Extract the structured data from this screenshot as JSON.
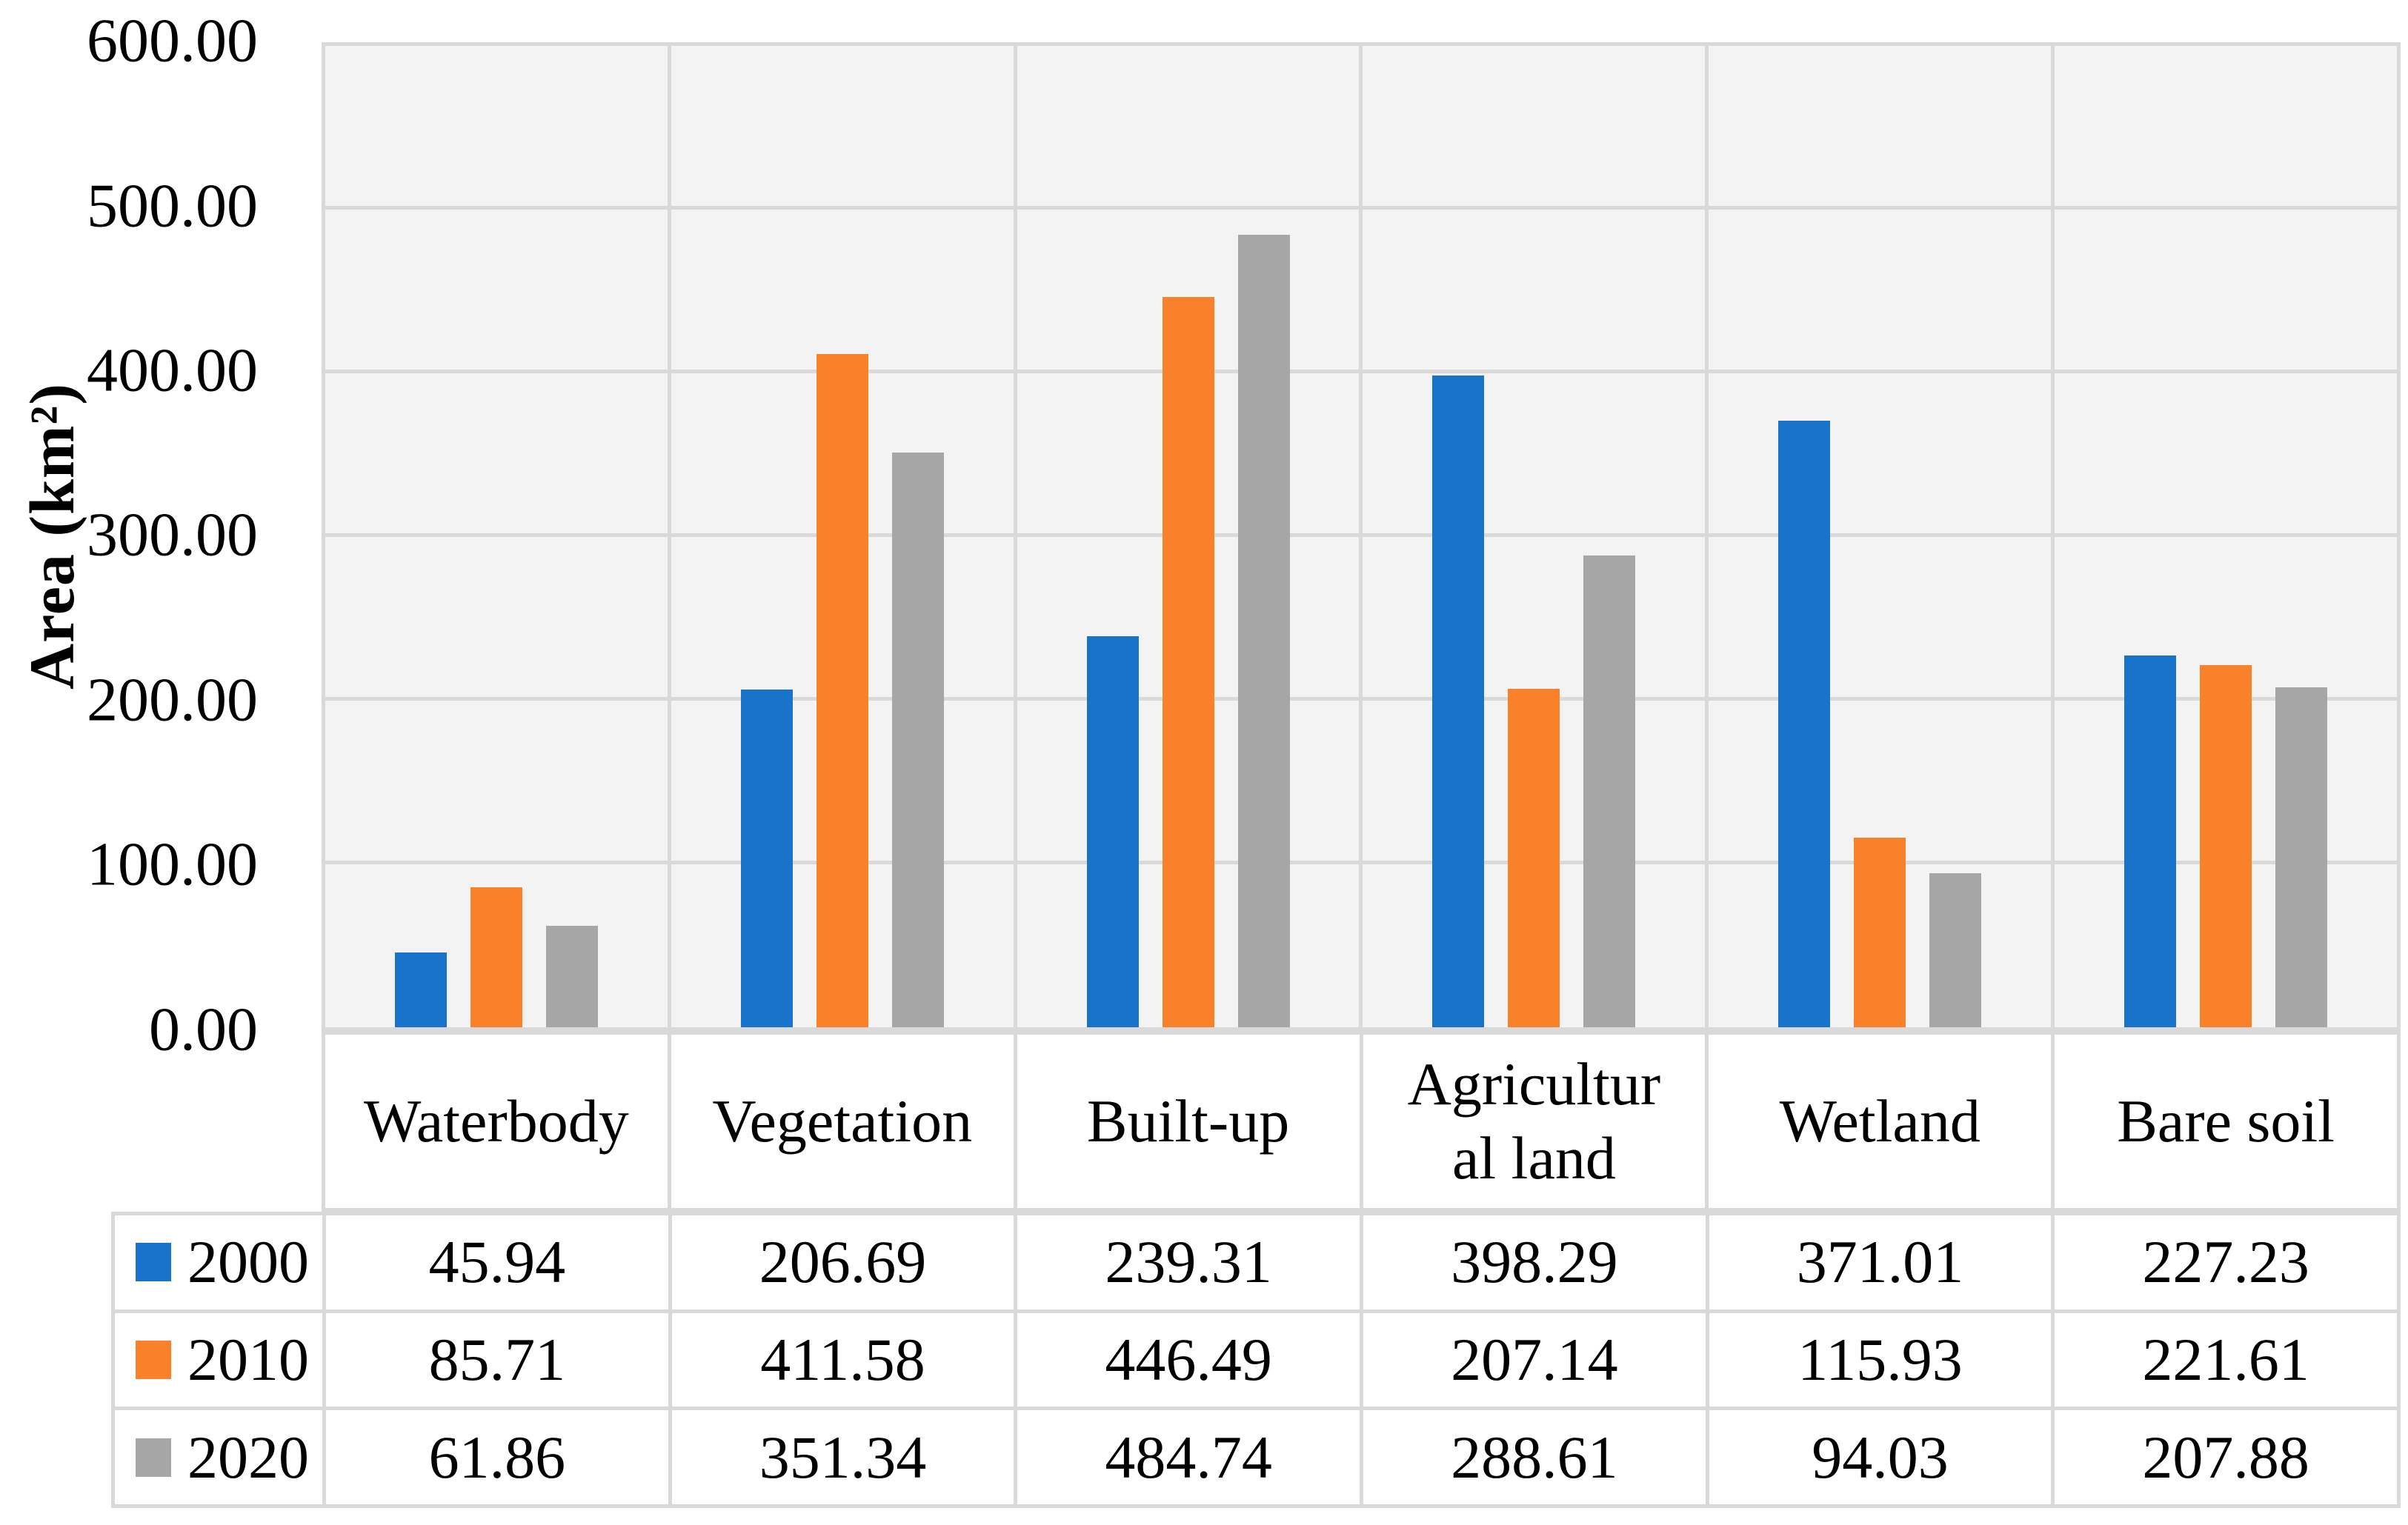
{
  "chart": {
    "y_axis_title": "Area (km²)",
    "y_ticks": [
      "600.00",
      "500.00",
      "400.00",
      "300.00",
      "200.00",
      "100.00",
      "0.00"
    ]
  },
  "chart_data": {
    "type": "bar",
    "title": "",
    "xlabel": "",
    "ylabel": "Area (km²)",
    "ylim": [
      0,
      600
    ],
    "y_tick_step": 100,
    "grid": true,
    "plot_background": "#F3F3F3",
    "gridline_color": "#D9D9D9",
    "legend_position": "data-table-left-column",
    "categories": [
      "Waterbody",
      "Vegetation",
      "Built-up",
      "Agricultural land",
      "Wetland",
      "Bare soil"
    ],
    "categories_display": [
      "Waterbody",
      "Vegetation",
      "Built-up",
      "Agricultur\nal land",
      "Wetland",
      "Bare soil"
    ],
    "series": [
      {
        "name": "2000",
        "color": "#1A73CB",
        "values": [
          45.94,
          206.69,
          239.31,
          398.29,
          371.01,
          227.23
        ]
      },
      {
        "name": "2010",
        "color": "#F9812A",
        "values": [
          85.71,
          411.58,
          446.49,
          207.14,
          115.93,
          221.61
        ]
      },
      {
        "name": "2020",
        "color": "#A6A6A6",
        "values": [
          61.86,
          351.34,
          484.74,
          288.61,
          94.03,
          207.88
        ]
      }
    ]
  }
}
